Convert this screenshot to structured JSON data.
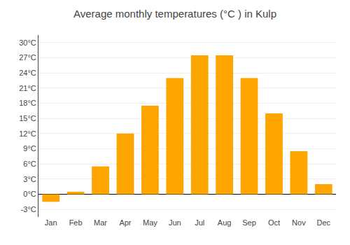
{
  "chart_data": {
    "type": "bar",
    "title": "Average monthly temperatures (°C ) in Kulp",
    "categories": [
      "Jan",
      "Feb",
      "Mar",
      "Apr",
      "May",
      "Jun",
      "Jul",
      "Aug",
      "Sep",
      "Oct",
      "Nov",
      "Dec"
    ],
    "values": [
      -1.5,
      0.5,
      5.5,
      12.0,
      17.5,
      23.0,
      27.5,
      27.5,
      23.0,
      16.0,
      8.5,
      2.0
    ],
    "color": "#FFA500",
    "ylim": [
      -4.5,
      31.5
    ],
    "yticks": [
      {
        "value": -3,
        "label": "-3°C"
      },
      {
        "value": 0,
        "label": "0°C"
      },
      {
        "value": 3,
        "label": "3°C"
      },
      {
        "value": 6,
        "label": "6°C"
      },
      {
        "value": 9,
        "label": "9°C"
      },
      {
        "value": 12,
        "label": "12°C"
      },
      {
        "value": 15,
        "label": "15°C"
      },
      {
        "value": 18,
        "label": "18°C"
      },
      {
        "value": 21,
        "label": "21°C"
      },
      {
        "value": 24,
        "label": "24°C"
      },
      {
        "value": 27,
        "label": "27°C"
      },
      {
        "value": 30,
        "label": "30°C"
      }
    ],
    "grid": true
  }
}
